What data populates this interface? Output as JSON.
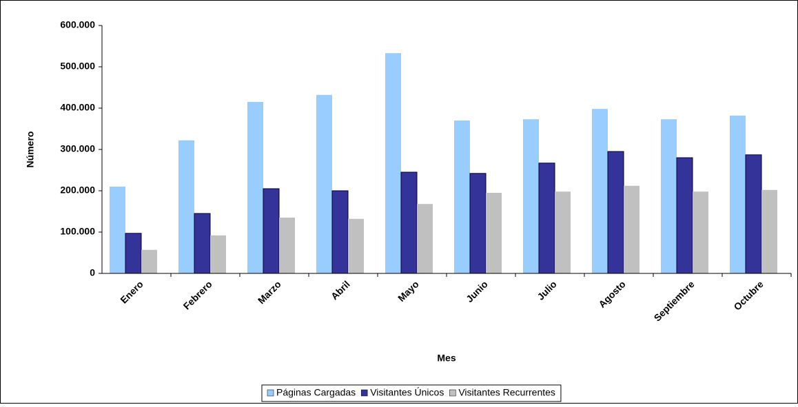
{
  "chart_data": {
    "type": "bar",
    "x_label": "Mes",
    "y_label": "Número",
    "categories": [
      "Enero",
      "Febrero",
      "Marzo",
      "Abril",
      "Mayo",
      "Junio",
      "Julio",
      "Agosto",
      "Septiembre",
      "Octubre"
    ],
    "series": [
      {
        "name": "Páginas Cargadas",
        "color": "#99ccff",
        "values": [
          210000,
          322000,
          415000,
          432000,
          533000,
          370000,
          373000,
          398000,
          373000,
          382000
        ]
      },
      {
        "name": "Visitantes Únicos",
        "color": "#333399",
        "values": [
          97000,
          145000,
          205000,
          200000,
          245000,
          242000,
          267000,
          295000,
          280000,
          287000
        ]
      },
      {
        "name": "Visitantes Recurrentes",
        "color": "#c0c0c0",
        "values": [
          57000,
          92000,
          135000,
          132000,
          168000,
          195000,
          198000,
          212000,
          198000,
          202000
        ]
      }
    ],
    "ylim": [
      0,
      600000
    ],
    "yticks": [
      0,
      {
        "value": 100000,
        "label": "100.000"
      },
      {
        "value": 200000,
        "label": "200.000"
      },
      {
        "value": 300000,
        "label": "300.000"
      },
      {
        "value": 400000,
        "label": "400.000"
      },
      {
        "value": 500000,
        "label": "500.000"
      },
      {
        "value": 600000,
        "label": "600.000"
      }
    ],
    "grid": false,
    "legend": "bottom"
  }
}
